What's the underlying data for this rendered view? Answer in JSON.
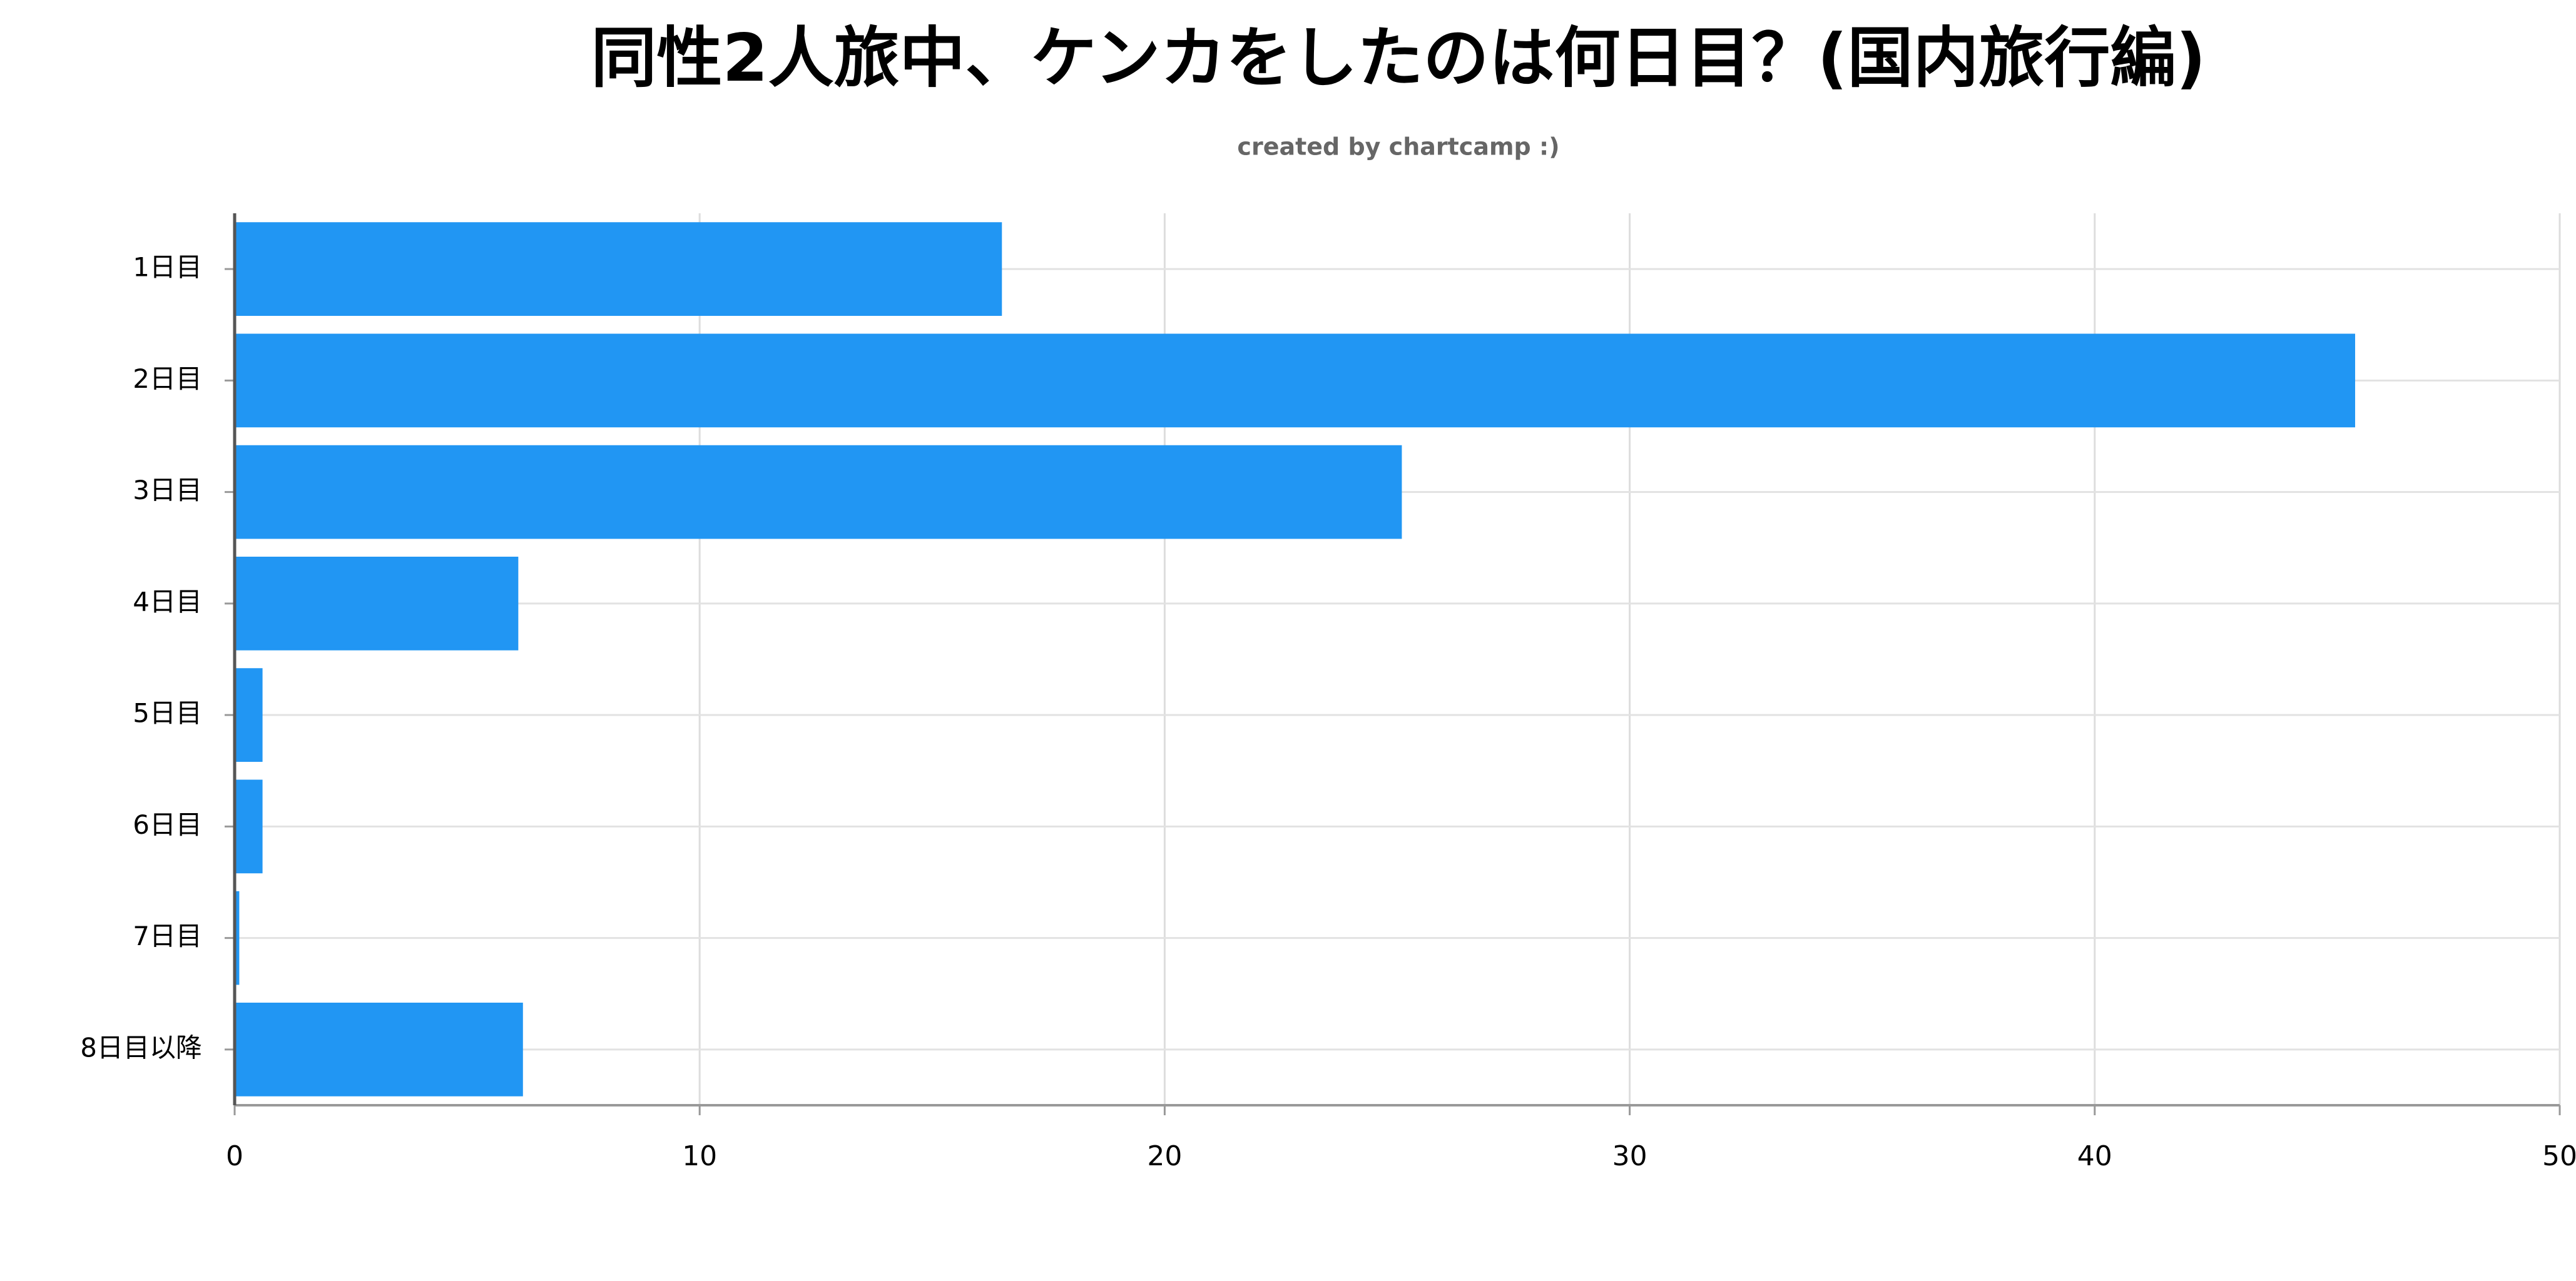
{
  "chart_data": {
    "type": "hbar",
    "title": "同性2人旅中、ケンカをしたのは何日目？(国内旅行編)",
    "subtitle": "created by chartcamp :)",
    "categories": [
      "1日目",
      "2日目",
      "3日目",
      "4日目",
      "5日目",
      "6日目",
      "7日目",
      "8日目以降"
    ],
    "values": [
      16.5,
      45.6,
      25.1,
      6.1,
      0.6,
      0.6,
      0.1,
      6.2
    ],
    "color": "#2196f3",
    "xlim": [
      0,
      50
    ],
    "xticks": [
      0,
      10,
      20,
      30,
      40,
      50
    ],
    "grid": true
  }
}
